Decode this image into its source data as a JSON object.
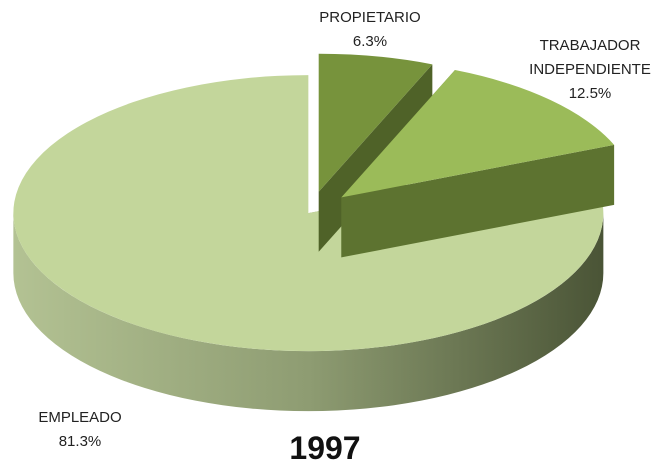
{
  "chart_data": {
    "type": "pie",
    "title": "1997",
    "categories": [
      "PROPIETARIO",
      "TRABAJADOR INDEPENDIENTE",
      "EMPLEADO"
    ],
    "values": [
      6.3,
      12.5,
      81.3
    ],
    "value_labels": [
      "6.3%",
      "12.5%",
      "81.3%"
    ],
    "colors": [
      "#77933c",
      "#9bbb59",
      "#c3d69b"
    ]
  }
}
